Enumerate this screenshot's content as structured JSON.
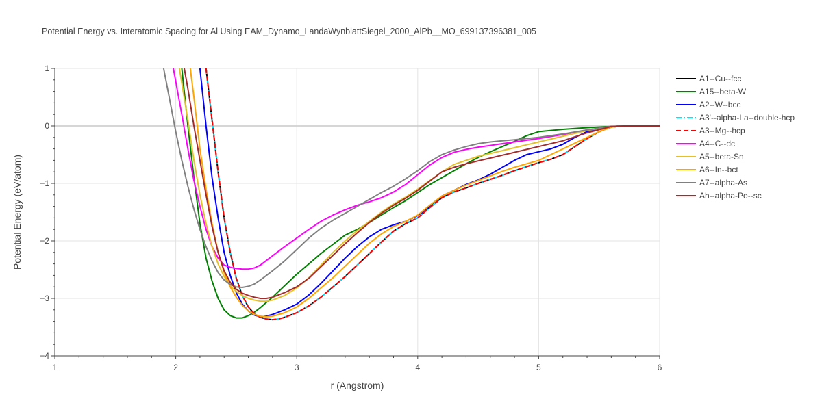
{
  "chart_data": {
    "type": "line",
    "title": "Potential Energy vs. Interatomic Spacing for Al Using EAM_Dynamo_LandaWynblattSiegel_2000_AlPb__MO_699137396381_005",
    "xlabel": "r (Angstrom)",
    "ylabel": "Potential Energy (eV/atom)",
    "xlim": [
      1,
      6
    ],
    "ylim": [
      -4,
      1
    ],
    "xticks": [
      "1",
      "2",
      "3",
      "4",
      "5",
      "6"
    ],
    "yticks": [
      "1",
      "0",
      "−1",
      "−2",
      "−3",
      "−4"
    ],
    "grid": true,
    "legend_position": "right",
    "series": [
      {
        "name": "A1--Cu--fcc",
        "color": "#000000",
        "dash": "solid",
        "x": [
          2.25,
          2.3,
          2.35,
          2.4,
          2.45,
          2.5,
          2.55,
          2.6,
          2.65,
          2.7,
          2.75,
          2.8,
          2.85,
          2.9,
          3.0,
          3.1,
          3.2,
          3.3,
          3.4,
          3.5,
          3.6,
          3.7,
          3.8,
          3.9,
          4.0,
          4.1,
          4.2,
          4.3,
          4.4,
          4.5,
          4.6,
          4.7,
          4.8,
          4.9,
          5.0,
          5.1,
          5.2,
          5.3,
          5.4,
          5.5,
          5.6,
          5.7,
          5.8,
          6.0
        ],
        "y": [
          1.0,
          0.1,
          -0.8,
          -1.6,
          -2.2,
          -2.65,
          -2.95,
          -3.15,
          -3.27,
          -3.33,
          -3.36,
          -3.37,
          -3.36,
          -3.33,
          -3.25,
          -3.13,
          -2.98,
          -2.8,
          -2.62,
          -2.42,
          -2.22,
          -2.02,
          -1.83,
          -1.7,
          -1.6,
          -1.42,
          -1.25,
          -1.15,
          -1.08,
          -1.0,
          -0.93,
          -0.86,
          -0.78,
          -0.71,
          -0.64,
          -0.58,
          -0.5,
          -0.36,
          -0.22,
          -0.1,
          -0.02,
          0.0,
          0.0,
          0.0
        ]
      },
      {
        "name": "A15--beta-W",
        "color": "#008000",
        "dash": "solid",
        "x": [
          2.05,
          2.1,
          2.15,
          2.2,
          2.25,
          2.3,
          2.35,
          2.4,
          2.45,
          2.5,
          2.55,
          2.6,
          2.65,
          2.7,
          2.8,
          2.9,
          3.0,
          3.1,
          3.2,
          3.3,
          3.4,
          3.5,
          3.6,
          3.7,
          3.8,
          3.9,
          4.0,
          4.1,
          4.2,
          4.3,
          4.4,
          4.5,
          4.6,
          4.7,
          4.8,
          4.9,
          5.0,
          5.2,
          5.4,
          5.6,
          5.7,
          6.0
        ],
        "y": [
          1.0,
          0.0,
          -0.9,
          -1.7,
          -2.3,
          -2.7,
          -3.0,
          -3.2,
          -3.3,
          -3.34,
          -3.34,
          -3.3,
          -3.24,
          -3.16,
          -2.98,
          -2.78,
          -2.58,
          -2.4,
          -2.22,
          -2.06,
          -1.9,
          -1.8,
          -1.68,
          -1.55,
          -1.42,
          -1.3,
          -1.16,
          -1.02,
          -0.9,
          -0.78,
          -0.66,
          -0.55,
          -0.45,
          -0.36,
          -0.27,
          -0.17,
          -0.1,
          -0.06,
          -0.03,
          -0.01,
          0.0,
          0.0
        ]
      },
      {
        "name": "A2--W--bcc",
        "color": "#0000ff",
        "dash": "solid",
        "x": [
          2.2,
          2.25,
          2.3,
          2.35,
          2.4,
          2.45,
          2.5,
          2.55,
          2.6,
          2.65,
          2.7,
          2.75,
          2.8,
          2.9,
          3.0,
          3.1,
          3.2,
          3.3,
          3.4,
          3.5,
          3.6,
          3.7,
          3.8,
          3.9,
          4.0,
          4.1,
          4.2,
          4.3,
          4.4,
          4.5,
          4.6,
          4.7,
          4.8,
          4.9,
          5.0,
          5.1,
          5.2,
          5.3,
          5.4,
          5.5,
          5.6,
          5.7,
          6.0
        ],
        "y": [
          1.0,
          0.0,
          -0.9,
          -1.6,
          -2.2,
          -2.6,
          -2.9,
          -3.1,
          -3.22,
          -3.29,
          -3.32,
          -3.31,
          -3.28,
          -3.2,
          -3.1,
          -2.94,
          -2.74,
          -2.52,
          -2.3,
          -2.1,
          -1.93,
          -1.8,
          -1.72,
          -1.66,
          -1.56,
          -1.4,
          -1.22,
          -1.12,
          -1.02,
          -0.94,
          -0.84,
          -0.72,
          -0.6,
          -0.5,
          -0.45,
          -0.4,
          -0.32,
          -0.2,
          -0.1,
          -0.04,
          -0.01,
          0.0,
          0.0
        ]
      },
      {
        "name": "A3'--alpha-La--double-hcp",
        "color": "#00e5ff",
        "dash": "dashdot",
        "x": [
          2.25,
          2.3,
          2.35,
          2.4,
          2.45,
          2.5,
          2.55,
          2.6,
          2.65,
          2.7,
          2.75,
          2.8,
          2.85,
          2.9,
          3.0,
          3.1,
          3.2,
          3.3,
          3.4,
          3.5,
          3.6,
          3.7,
          3.8,
          3.9,
          4.0,
          4.1,
          4.2,
          4.3,
          4.4,
          4.5,
          4.6,
          4.7,
          4.8,
          4.9,
          5.0,
          5.1,
          5.2,
          5.3,
          5.4,
          5.5,
          5.6,
          5.7,
          5.8,
          6.0
        ],
        "y": [
          1.0,
          0.1,
          -0.8,
          -1.6,
          -2.2,
          -2.65,
          -2.95,
          -3.15,
          -3.27,
          -3.33,
          -3.36,
          -3.37,
          -3.36,
          -3.33,
          -3.25,
          -3.13,
          -2.98,
          -2.8,
          -2.62,
          -2.42,
          -2.22,
          -2.02,
          -1.83,
          -1.7,
          -1.6,
          -1.42,
          -1.25,
          -1.15,
          -1.08,
          -1.0,
          -0.93,
          -0.86,
          -0.78,
          -0.71,
          -0.64,
          -0.58,
          -0.5,
          -0.36,
          -0.22,
          -0.1,
          -0.02,
          0.0,
          0.0,
          0.0
        ]
      },
      {
        "name": "A3--Mg--hcp",
        "color": "#ff0000",
        "dash": "dash",
        "x": [
          2.25,
          2.3,
          2.35,
          2.4,
          2.45,
          2.5,
          2.55,
          2.6,
          2.65,
          2.7,
          2.75,
          2.8,
          2.85,
          2.9,
          3.0,
          3.1,
          3.2,
          3.3,
          3.4,
          3.5,
          3.6,
          3.7,
          3.8,
          3.9,
          4.0,
          4.1,
          4.2,
          4.3,
          4.4,
          4.5,
          4.6,
          4.7,
          4.8,
          4.9,
          5.0,
          5.1,
          5.2,
          5.3,
          5.4,
          5.5,
          5.6,
          5.7,
          5.8,
          6.0
        ],
        "y": [
          1.0,
          0.1,
          -0.8,
          -1.6,
          -2.2,
          -2.65,
          -2.95,
          -3.15,
          -3.27,
          -3.33,
          -3.36,
          -3.37,
          -3.36,
          -3.33,
          -3.25,
          -3.13,
          -2.98,
          -2.8,
          -2.62,
          -2.42,
          -2.22,
          -2.02,
          -1.83,
          -1.7,
          -1.6,
          -1.42,
          -1.25,
          -1.15,
          -1.08,
          -1.0,
          -0.93,
          -0.86,
          -0.78,
          -0.71,
          -0.64,
          -0.58,
          -0.5,
          -0.36,
          -0.22,
          -0.1,
          -0.02,
          0.0,
          0.0,
          0.0
        ]
      },
      {
        "name": "A4--C--dc",
        "color": "#ff00ff",
        "dash": "solid",
        "x": [
          1.98,
          2.05,
          2.1,
          2.15,
          2.2,
          2.25,
          2.3,
          2.35,
          2.4,
          2.45,
          2.5,
          2.55,
          2.6,
          2.65,
          2.7,
          2.8,
          2.9,
          3.0,
          3.1,
          3.2,
          3.3,
          3.4,
          3.5,
          3.6,
          3.7,
          3.8,
          3.9,
          4.0,
          4.1,
          4.2,
          4.3,
          4.4,
          4.5,
          4.6,
          4.7,
          4.8,
          4.9,
          5.0,
          5.2,
          5.4,
          5.6,
          5.7,
          6.0
        ],
        "y": [
          1.0,
          0.2,
          -0.4,
          -0.95,
          -1.4,
          -1.8,
          -2.1,
          -2.3,
          -2.42,
          -2.46,
          -2.48,
          -2.49,
          -2.49,
          -2.47,
          -2.42,
          -2.26,
          -2.1,
          -1.95,
          -1.8,
          -1.66,
          -1.55,
          -1.46,
          -1.38,
          -1.32,
          -1.25,
          -1.15,
          -1.02,
          -0.85,
          -0.68,
          -0.55,
          -0.46,
          -0.41,
          -0.37,
          -0.34,
          -0.31,
          -0.28,
          -0.25,
          -0.22,
          -0.15,
          -0.07,
          -0.01,
          0.0,
          0.0
        ]
      },
      {
        "name": "A5--beta-Sn",
        "color": "#e5c02a",
        "dash": "solid",
        "x": [
          2.03,
          2.1,
          2.15,
          2.2,
          2.25,
          2.3,
          2.35,
          2.4,
          2.45,
          2.5,
          2.55,
          2.6,
          2.65,
          2.7,
          2.75,
          2.8,
          2.9,
          3.0,
          3.1,
          3.2,
          3.3,
          3.4,
          3.5,
          3.6,
          3.7,
          3.8,
          3.9,
          4.0,
          4.1,
          4.2,
          4.3,
          4.4,
          4.5,
          4.6,
          4.7,
          4.8,
          4.9,
          5.0,
          5.2,
          5.4,
          5.6,
          5.7,
          6.0
        ],
        "y": [
          1.0,
          0.1,
          -0.6,
          -1.2,
          -1.7,
          -2.1,
          -2.4,
          -2.62,
          -2.78,
          -2.88,
          -2.95,
          -3.0,
          -3.03,
          -3.05,
          -3.05,
          -3.03,
          -2.95,
          -2.82,
          -2.64,
          -2.42,
          -2.2,
          -2.0,
          -1.82,
          -1.66,
          -1.5,
          -1.36,
          -1.24,
          -1.1,
          -0.95,
          -0.8,
          -0.67,
          -0.6,
          -0.53,
          -0.48,
          -0.43,
          -0.38,
          -0.33,
          -0.28,
          -0.18,
          -0.08,
          -0.01,
          0.0,
          0.0
        ]
      },
      {
        "name": "A6--In--bct",
        "color": "#ffa500",
        "dash": "solid",
        "x": [
          2.12,
          2.15,
          2.2,
          2.25,
          2.3,
          2.35,
          2.4,
          2.45,
          2.5,
          2.55,
          2.6,
          2.65,
          2.7,
          2.75,
          2.8,
          2.9,
          3.0,
          3.1,
          3.2,
          3.3,
          3.4,
          3.5,
          3.6,
          3.7,
          3.8,
          3.9,
          4.0,
          4.1,
          4.2,
          4.3,
          4.4,
          4.5,
          4.6,
          4.7,
          4.8,
          4.9,
          5.0,
          5.1,
          5.2,
          5.3,
          5.4,
          5.5,
          5.6,
          5.7,
          6.0
        ],
        "y": [
          1.0,
          0.5,
          -0.4,
          -1.1,
          -1.7,
          -2.2,
          -2.55,
          -2.8,
          -2.98,
          -3.12,
          -3.22,
          -3.28,
          -3.31,
          -3.32,
          -3.31,
          -3.25,
          -3.15,
          -3.0,
          -2.82,
          -2.64,
          -2.44,
          -2.24,
          -2.04,
          -1.88,
          -1.75,
          -1.66,
          -1.55,
          -1.38,
          -1.22,
          -1.12,
          -1.03,
          -0.95,
          -0.87,
          -0.79,
          -0.72,
          -0.66,
          -0.6,
          -0.5,
          -0.4,
          -0.3,
          -0.2,
          -0.1,
          -0.02,
          0.0,
          0.0
        ]
      },
      {
        "name": "A7--alpha-As",
        "color": "#808080",
        "dash": "solid",
        "x": [
          1.9,
          1.95,
          2.0,
          2.05,
          2.1,
          2.15,
          2.2,
          2.25,
          2.3,
          2.35,
          2.4,
          2.45,
          2.5,
          2.55,
          2.6,
          2.65,
          2.7,
          2.8,
          2.9,
          3.0,
          3.1,
          3.2,
          3.3,
          3.4,
          3.5,
          3.6,
          3.7,
          3.8,
          3.9,
          4.0,
          4.1,
          4.2,
          4.3,
          4.4,
          4.5,
          4.6,
          4.7,
          4.8,
          4.9,
          5.0,
          5.2,
          5.4,
          5.6,
          5.7,
          6.0
        ],
        "y": [
          1.0,
          0.45,
          -0.1,
          -0.6,
          -1.05,
          -1.45,
          -1.8,
          -2.1,
          -2.35,
          -2.55,
          -2.68,
          -2.76,
          -2.8,
          -2.81,
          -2.79,
          -2.75,
          -2.68,
          -2.52,
          -2.35,
          -2.15,
          -1.95,
          -1.78,
          -1.64,
          -1.52,
          -1.4,
          -1.28,
          -1.16,
          -1.05,
          -0.92,
          -0.78,
          -0.62,
          -0.5,
          -0.42,
          -0.36,
          -0.31,
          -0.28,
          -0.26,
          -0.24,
          -0.22,
          -0.2,
          -0.14,
          -0.07,
          -0.01,
          0.0,
          0.0
        ]
      },
      {
        "name": "Ah--alpha-Po--sc",
        "color": "#a52a2a",
        "dash": "solid",
        "x": [
          2.07,
          2.1,
          2.15,
          2.2,
          2.25,
          2.3,
          2.35,
          2.4,
          2.45,
          2.5,
          2.55,
          2.6,
          2.65,
          2.7,
          2.75,
          2.8,
          2.9,
          3.0,
          3.1,
          3.2,
          3.3,
          3.4,
          3.5,
          3.6,
          3.7,
          3.8,
          3.9,
          4.0,
          4.1,
          4.2,
          4.3,
          4.4,
          4.5,
          4.6,
          4.7,
          4.8,
          4.9,
          5.0,
          5.2,
          5.4,
          5.6,
          5.7,
          6.0
        ],
        "y": [
          1.0,
          0.65,
          0.0,
          -0.6,
          -1.2,
          -1.75,
          -2.2,
          -2.52,
          -2.72,
          -2.84,
          -2.91,
          -2.95,
          -2.98,
          -3.0,
          -3.0,
          -2.98,
          -2.9,
          -2.8,
          -2.65,
          -2.45,
          -2.25,
          -2.05,
          -1.86,
          -1.68,
          -1.52,
          -1.38,
          -1.26,
          -1.12,
          -0.96,
          -0.8,
          -0.72,
          -0.66,
          -0.61,
          -0.56,
          -0.51,
          -0.46,
          -0.41,
          -0.36,
          -0.26,
          -0.12,
          -0.01,
          0.0,
          0.0
        ]
      }
    ]
  }
}
